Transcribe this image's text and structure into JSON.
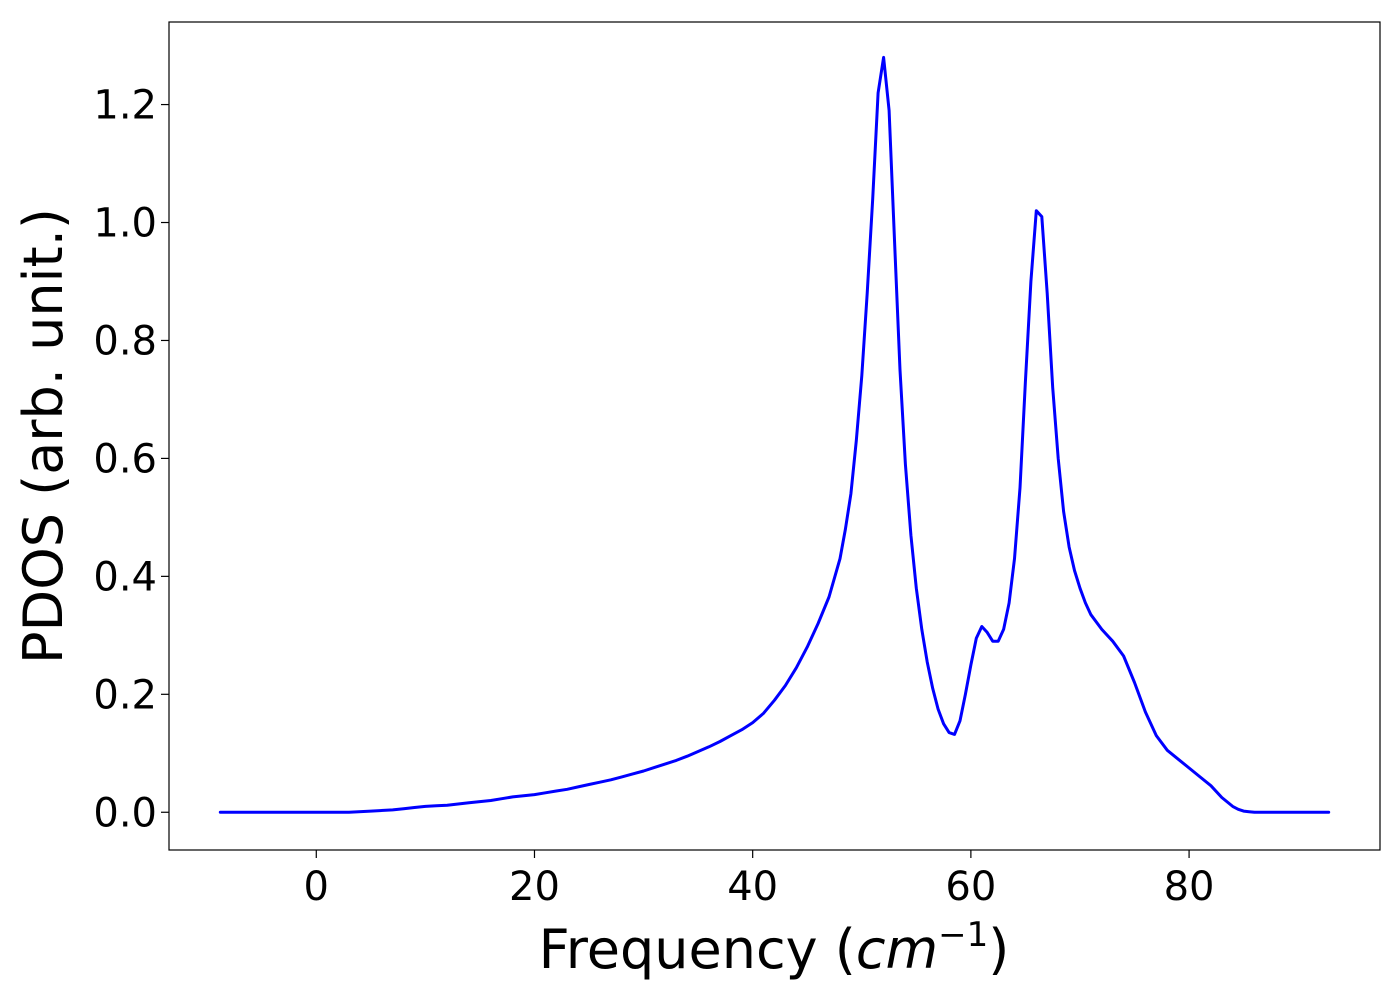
{
  "chart_data": {
    "type": "line",
    "title": "",
    "xlabel": {
      "prefix": "Frequency (",
      "unit": "cm",
      "exponent": "−1",
      "suffix": ")"
    },
    "ylabel": "PDOS (arb. unit.)",
    "xlim": [
      -13.5,
      97.5
    ],
    "ylim": [
      -0.064,
      1.34
    ],
    "x_ticks": [
      0,
      20,
      40,
      60,
      80
    ],
    "x_tick_labels": [
      "0",
      "20",
      "40",
      "60",
      "80"
    ],
    "y_ticks": [
      0.0,
      0.2,
      0.4,
      0.6,
      0.8,
      1.0,
      1.2
    ],
    "y_tick_labels": [
      "0.0",
      "0.2",
      "0.4",
      "0.6",
      "0.8",
      "1.0",
      "1.2"
    ],
    "grid": false,
    "legend": "none",
    "series": [
      {
        "color": "#0000ff",
        "x": [
          -8.8,
          0,
          3,
          5,
          7,
          8,
          9,
          10,
          11,
          12,
          13,
          14,
          15,
          16,
          17,
          18,
          19,
          20,
          21,
          22,
          23,
          24,
          25,
          26,
          27,
          28,
          29,
          30,
          31,
          32,
          33,
          34,
          35,
          36,
          37,
          38,
          39,
          40,
          41,
          42,
          43,
          44,
          45,
          46,
          47,
          48,
          48.5,
          49,
          49.5,
          50,
          50.5,
          51,
          51.5,
          52,
          52.5,
          53,
          53.5,
          54,
          54.5,
          55,
          55.5,
          56,
          56.5,
          57,
          57.5,
          58,
          58.5,
          59,
          59.5,
          60,
          60.5,
          61,
          61.5,
          62,
          62.5,
          63,
          63.5,
          64,
          64.5,
          65,
          65.5,
          66,
          66.5,
          67,
          67.5,
          68,
          68.5,
          69,
          69.5,
          70,
          70.5,
          71,
          72,
          73,
          74,
          75,
          76,
          77,
          78,
          79,
          80,
          81,
          82,
          83,
          84,
          84.5,
          85,
          85.5,
          86,
          87,
          88,
          90,
          92.8
        ],
        "y": [
          0.0,
          0.0,
          0.0,
          0.002,
          0.004,
          0.006,
          0.008,
          0.01,
          0.011,
          0.012,
          0.014,
          0.016,
          0.018,
          0.02,
          0.023,
          0.026,
          0.028,
          0.03,
          0.033,
          0.036,
          0.039,
          0.043,
          0.047,
          0.051,
          0.055,
          0.06,
          0.065,
          0.07,
          0.076,
          0.082,
          0.088,
          0.095,
          0.103,
          0.111,
          0.12,
          0.13,
          0.14,
          0.152,
          0.168,
          0.19,
          0.215,
          0.245,
          0.28,
          0.32,
          0.365,
          0.43,
          0.48,
          0.54,
          0.63,
          0.74,
          0.88,
          1.04,
          1.22,
          1.28,
          1.19,
          0.97,
          0.75,
          0.59,
          0.47,
          0.38,
          0.31,
          0.255,
          0.21,
          0.175,
          0.15,
          0.135,
          0.132,
          0.155,
          0.2,
          0.25,
          0.295,
          0.315,
          0.305,
          0.29,
          0.29,
          0.31,
          0.355,
          0.43,
          0.55,
          0.73,
          0.9,
          1.02,
          1.01,
          0.88,
          0.72,
          0.6,
          0.51,
          0.45,
          0.41,
          0.38,
          0.355,
          0.335,
          0.31,
          0.29,
          0.265,
          0.22,
          0.17,
          0.13,
          0.105,
          0.09,
          0.075,
          0.06,
          0.045,
          0.025,
          0.01,
          0.005,
          0.002,
          0.001,
          0.0,
          0.0,
          0.0,
          0.0,
          0.0
        ]
      }
    ]
  }
}
